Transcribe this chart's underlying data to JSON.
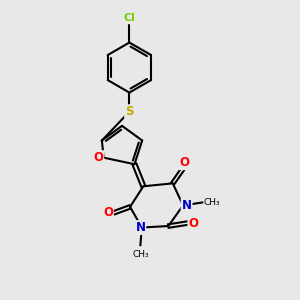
{
  "bg_color": "#e8e8e8",
  "atom_colors": {
    "C": "#000000",
    "N": "#0000cd",
    "O": "#ff0000",
    "S": "#ccaa00",
    "Cl": "#77cc00"
  },
  "bond_color": "#000000",
  "bond_width": 1.5,
  "figsize": [
    3.0,
    3.0
  ],
  "dpi": 100
}
